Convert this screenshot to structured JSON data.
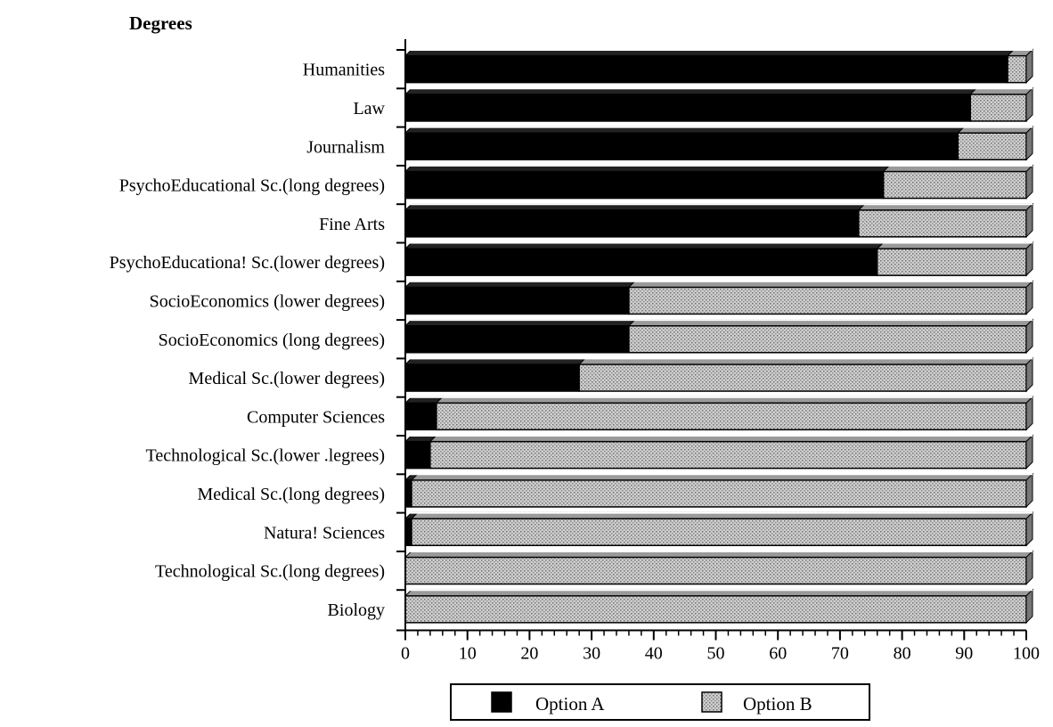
{
  "chart_data": {
    "type": "bar",
    "orientation": "horizontal",
    "stacked": "100%",
    "ylabel": "Degrees",
    "xlim": [
      0,
      100
    ],
    "xticks": [
      0,
      10,
      20,
      30,
      40,
      50,
      60,
      70,
      80,
      90,
      100
    ],
    "xtick_labels": [
      "0",
      "10",
      "20",
      "30",
      "40",
      "50",
      "60",
      "70",
      "80",
      "90",
      "100"
    ],
    "categories": [
      "Humanities",
      "Law",
      "Journalism",
      "PsychoEducational Sc.(long degrees)",
      "Fine Arts",
      "PsychoEducationa! Sc.(lower degrees)",
      "SocioEconomics (lower degrees)",
      "SocioEconomics (long degrees)",
      "Medical Sc.(lower degrees)",
      "Computer Sciences",
      "Technological Sc.(lower .legrees)",
      "Medical Sc.(long degrees)",
      "Natura! Sciences",
      "Technological Sc.(long degrees)",
      "Biology"
    ],
    "series": [
      {
        "name": "Option A",
        "color": "#000000",
        "values": [
          97,
          91,
          89,
          77,
          73,
          76,
          36,
          36,
          28,
          5,
          4,
          1,
          1,
          0,
          0
        ]
      },
      {
        "name": "Option B",
        "color": "#b5b5b5",
        "values": [
          3,
          9,
          11,
          23,
          27,
          24,
          64,
          64,
          72,
          95,
          96,
          99,
          99,
          100,
          100
        ]
      }
    ],
    "legend_position": "bottom-center",
    "grid": false
  }
}
